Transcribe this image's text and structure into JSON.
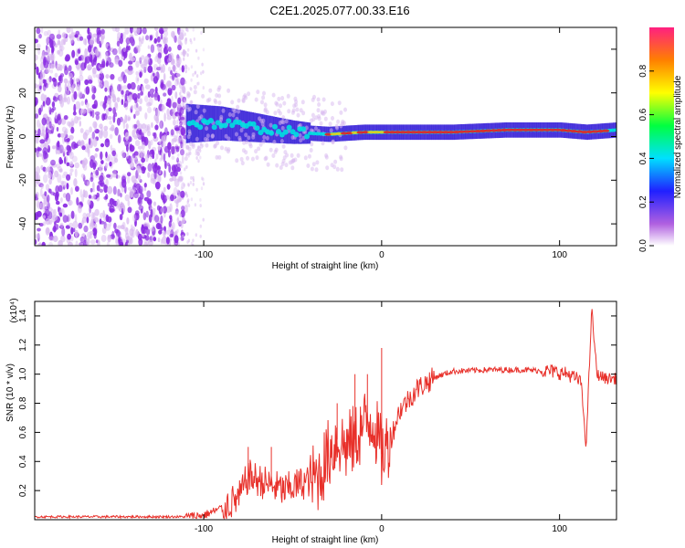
{
  "title": "C2E1.2025.077.00.33.E16",
  "chart_data": [
    {
      "type": "heatmap",
      "xlabel": "Height of straight line (km)",
      "ylabel": "Frequency (Hz)",
      "xlim": [
        -195,
        132
      ],
      "ylim": [
        -50,
        50
      ],
      "xticks": [
        -100,
        0,
        100
      ],
      "yticks": [
        -40,
        -20,
        0,
        20,
        40
      ],
      "colorbar": {
        "label": "Normalized spectral amplitude",
        "range": [
          0,
          1
        ],
        "ticks": [
          "0.0",
          "0.2",
          "0.4",
          "0.6",
          "0.8"
        ]
      },
      "colors": {
        "noise": "#8a2be2",
        "noise_light": "#d8b8f0",
        "band": "#2e16d6",
        "band_mid": "#00e0e0",
        "peak": "#e82020"
      },
      "band_center": [
        {
          "x": -110,
          "y": 6
        },
        {
          "x": -90,
          "y": 6
        },
        {
          "x": -70,
          "y": 4
        },
        {
          "x": -50,
          "y": 2
        },
        {
          "x": -30,
          "y": 1
        },
        {
          "x": -10,
          "y": 2
        },
        {
          "x": 10,
          "y": 2
        },
        {
          "x": 40,
          "y": 2
        },
        {
          "x": 70,
          "y": 3
        },
        {
          "x": 100,
          "y": 3
        },
        {
          "x": 115,
          "y": 2
        },
        {
          "x": 132,
          "y": 3
        }
      ]
    },
    {
      "type": "line",
      "xlabel": "Height of straight line (km)",
      "ylabel": "SNR (10 * v/v)",
      "y_multiplier": "(x10⁴)",
      "xlim": [
        -195,
        132
      ],
      "ylim": [
        0,
        1.5
      ],
      "xticks": [
        -100,
        0,
        100
      ],
      "yticks": [
        "0.2",
        "0.4",
        "0.6",
        "0.8",
        "1.0",
        "1.2",
        "1.4"
      ],
      "series": [
        {
          "color": "#e8302a",
          "points": [
            {
              "x": -195,
              "y": 0.02
            },
            {
              "x": -110,
              "y": 0.02
            },
            {
              "x": -100,
              "y": 0.03
            },
            {
              "x": -90,
              "y": 0.08
            },
            {
              "x": -80,
              "y": 0.15
            },
            {
              "x": -75,
              "y": 0.3
            },
            {
              "x": -65,
              "y": 0.25
            },
            {
              "x": -55,
              "y": 0.2
            },
            {
              "x": -45,
              "y": 0.25
            },
            {
              "x": -35,
              "y": 0.3
            },
            {
              "x": -30,
              "y": 0.45
            },
            {
              "x": -25,
              "y": 0.55
            },
            {
              "x": -20,
              "y": 0.5
            },
            {
              "x": -15,
              "y": 0.55
            },
            {
              "x": -10,
              "y": 0.65
            },
            {
              "x": -5,
              "y": 0.7
            },
            {
              "x": 0,
              "y": 0.45
            },
            {
              "x": 5,
              "y": 0.55
            },
            {
              "x": 10,
              "y": 0.75
            },
            {
              "x": 20,
              "y": 0.9
            },
            {
              "x": 30,
              "y": 0.98
            },
            {
              "x": 40,
              "y": 1.02
            },
            {
              "x": 60,
              "y": 1.03
            },
            {
              "x": 80,
              "y": 1.03
            },
            {
              "x": 95,
              "y": 1.02
            },
            {
              "x": 105,
              "y": 1.0
            },
            {
              "x": 112,
              "y": 0.95
            },
            {
              "x": 115,
              "y": 0.5
            },
            {
              "x": 118,
              "y": 1.45
            },
            {
              "x": 121,
              "y": 1.0
            },
            {
              "x": 126,
              "y": 0.97
            },
            {
              "x": 132,
              "y": 0.97
            }
          ],
          "spikes": [
            {
              "x": -25,
              "y": 0.8
            },
            {
              "x": -15,
              "y": 1.0
            },
            {
              "x": -8,
              "y": 1.0
            },
            {
              "x": 0,
              "y": 1.18
            },
            {
              "x": -75,
              "y": 0.5
            },
            {
              "x": -62,
              "y": 0.5
            }
          ]
        }
      ]
    }
  ]
}
